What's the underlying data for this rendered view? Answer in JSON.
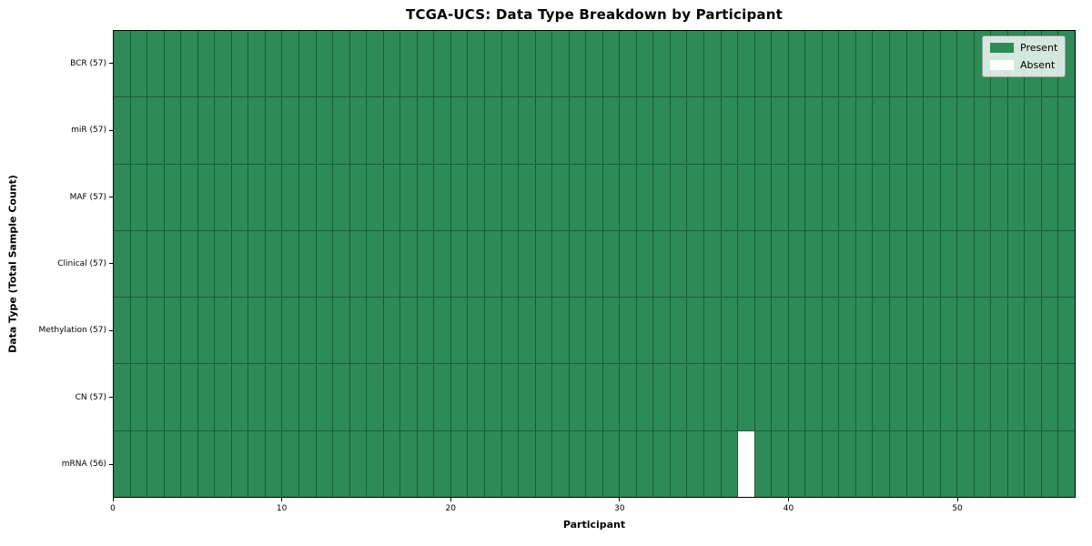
{
  "chart_data": {
    "type": "heatmap",
    "title": "TCGA-UCS: Data Type Breakdown by Participant",
    "xlabel": "Participant",
    "ylabel": "Data Type (Total Sample Count)",
    "n_participants": 57,
    "x_range": [
      0,
      57
    ],
    "x_ticks": [
      0,
      10,
      20,
      30,
      40,
      50
    ],
    "grid": true,
    "legend_position": "upper right",
    "rows": [
      {
        "label": "BCR (57)",
        "data_type": "BCR",
        "present_count": 57,
        "absent_participants": []
      },
      {
        "label": "miR (57)",
        "data_type": "miR",
        "present_count": 57,
        "absent_participants": []
      },
      {
        "label": "MAF (57)",
        "data_type": "MAF",
        "present_count": 57,
        "absent_participants": []
      },
      {
        "label": "Clinical (57)",
        "data_type": "Clinical",
        "present_count": 57,
        "absent_participants": []
      },
      {
        "label": "Methylation (57)",
        "data_type": "Methylation",
        "present_count": 57,
        "absent_participants": []
      },
      {
        "label": "CN (57)",
        "data_type": "CN",
        "present_count": 57,
        "absent_participants": []
      },
      {
        "label": "mRNA (56)",
        "data_type": "mRNA",
        "present_count": 56,
        "absent_participants": [
          37
        ]
      }
    ],
    "legend": [
      {
        "label": "Present",
        "color": "#2e8b57"
      },
      {
        "label": "Absent",
        "color": "#ffffff"
      }
    ]
  }
}
